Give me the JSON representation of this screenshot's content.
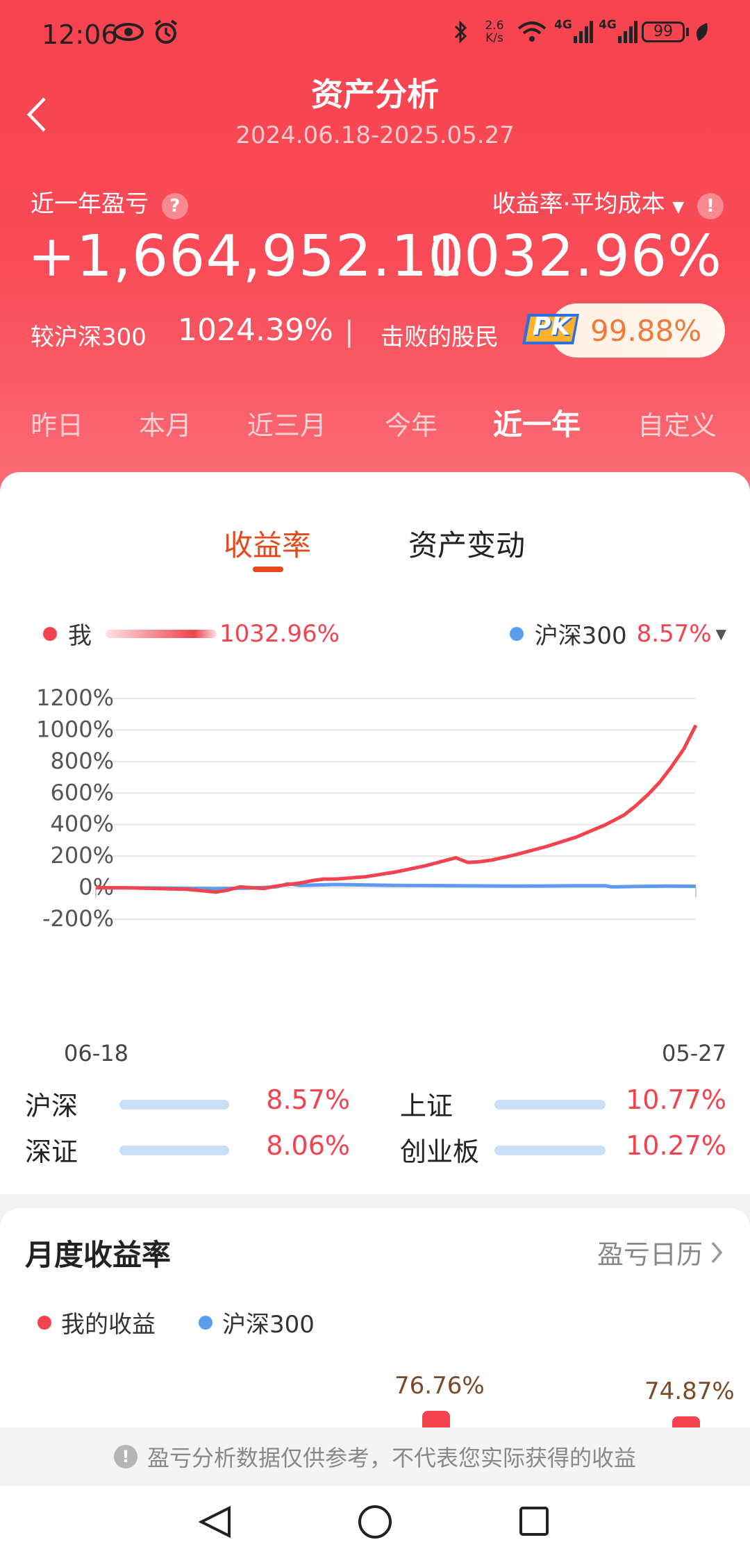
{
  "status_bar": {
    "time": "12:06",
    "speed_top": "2.6",
    "speed_bottom": "K/s",
    "net1": "4G",
    "net2": "4G",
    "battery": "99"
  },
  "header": {
    "title": "资产分析",
    "date_range": "2024.06.18-2025.05.27",
    "pnl_label": "近一年盈亏",
    "pnl_value": "+1,664,952.10",
    "return_label": "收益率·平均成本",
    "return_value": "1032.96%",
    "vs_label": "较沪深300",
    "vs_value": "1024.39%",
    "separator": "|",
    "beat_label": "击败的股民",
    "pk_badge": "PK",
    "beat_value": "99.88%"
  },
  "period_tabs": [
    {
      "label": "昨日",
      "active": false
    },
    {
      "label": "本月",
      "active": false
    },
    {
      "label": "近三月",
      "active": false
    },
    {
      "label": "今年",
      "active": false
    },
    {
      "label": "近一年",
      "active": true
    },
    {
      "label": "自定义",
      "active": false
    }
  ],
  "chart_tabs": [
    {
      "label": "收益率",
      "active": true
    },
    {
      "label": "资产变动",
      "active": false
    }
  ],
  "legend": {
    "me_label": "我",
    "me_value": "1032.96%",
    "bench_label": "沪深300",
    "bench_value": "8.57%"
  },
  "colors": {
    "accent_red": "#f2434f",
    "bench_blue": "#5c9cf0",
    "tab_orange": "#e4491e"
  },
  "chart_data": {
    "type": "line",
    "x_tick_labels": [
      "06-18",
      "05-27"
    ],
    "y_tick_labels": [
      "1200%",
      "1000%",
      "800%",
      "600%",
      "400%",
      "200%",
      "0%",
      "-200%"
    ],
    "ylim": [
      -200,
      1200
    ],
    "xlim": [
      0,
      100
    ],
    "grid": true,
    "series": [
      {
        "name": "我",
        "color": "#f2434f",
        "x": [
          0,
          5,
          10,
          15,
          18,
          20,
          22,
          24,
          26,
          28,
          30,
          32,
          34,
          36,
          38,
          40,
          45,
          50,
          55,
          60,
          62,
          64,
          66,
          70,
          75,
          80,
          85,
          88,
          90,
          92,
          94,
          96,
          98,
          100
        ],
        "y": [
          0,
          0,
          -5,
          -10,
          -20,
          -28,
          -15,
          5,
          0,
          -5,
          10,
          20,
          30,
          45,
          55,
          55,
          70,
          100,
          140,
          190,
          160,
          165,
          175,
          210,
          260,
          320,
          400,
          460,
          520,
          590,
          670,
          770,
          880,
          1030
        ]
      },
      {
        "name": "沪深300",
        "color": "#5c9cf0",
        "x": [
          0,
          10,
          20,
          25,
          30,
          32,
          34,
          40,
          50,
          60,
          70,
          80,
          85,
          86,
          90,
          95,
          100
        ],
        "y": [
          0,
          -2,
          -5,
          -3,
          5,
          25,
          15,
          20,
          15,
          12,
          10,
          12,
          12,
          5,
          8,
          10,
          9
        ]
      }
    ]
  },
  "index_compare": [
    {
      "name": "沪深",
      "value": "8.57%"
    },
    {
      "name": "上证",
      "value": "10.77%"
    },
    {
      "name": "深证",
      "value": "8.06%"
    },
    {
      "name": "创业板",
      "value": "10.27%"
    }
  ],
  "monthly": {
    "title": "月度收益率",
    "calendar_link": "盈亏日历",
    "legend_me": "我的收益",
    "legend_bench": "沪深300",
    "bar_labels": [
      "76.76%",
      "74.87%"
    ]
  },
  "disclaimer": "盈亏分析数据仅供参考，不代表您实际获得的收益"
}
